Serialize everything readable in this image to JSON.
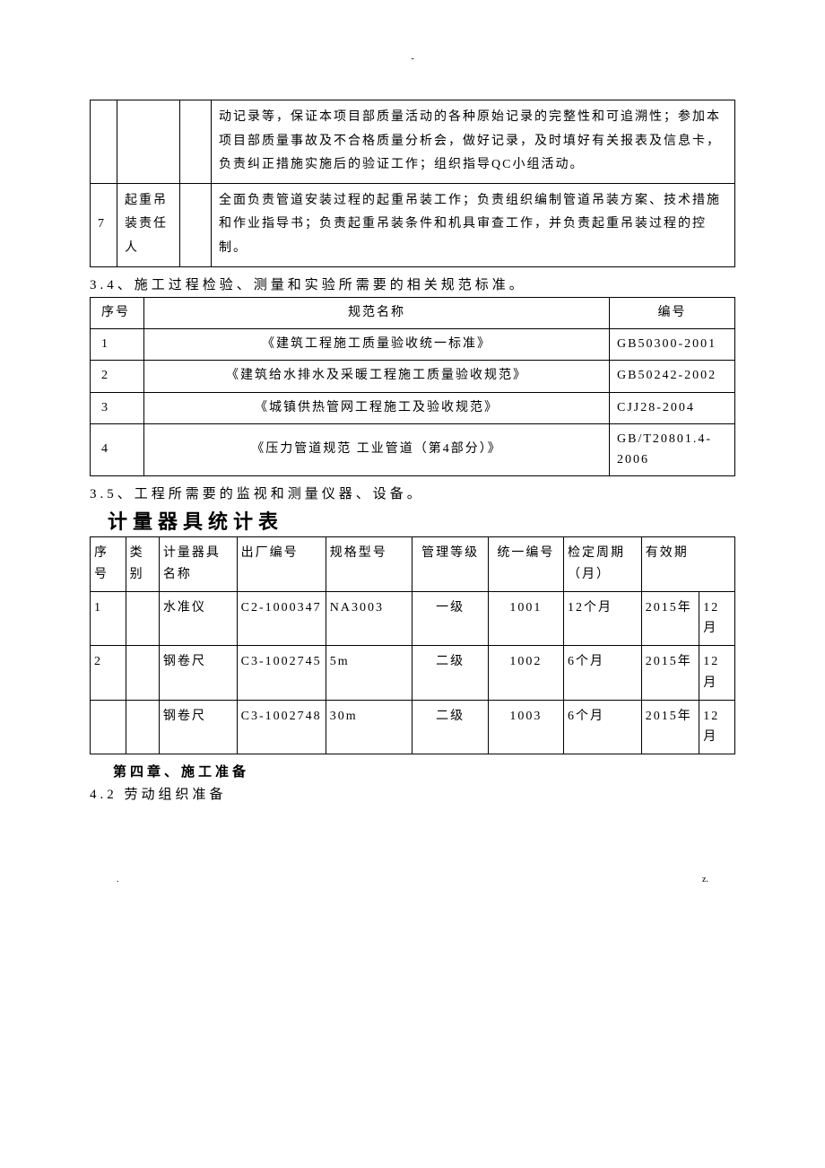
{
  "page_mark": "-",
  "table1": {
    "rows": [
      {
        "num": "",
        "role": "",
        "blank": "",
        "desc": "动记录等，保证本项目部质量活动的各种原始记录的完整性和可追溯性；参加本项目部质量事故及不合格质量分析会，做好记录，及时填好有关报表及信息卡，负责纠正措施实施后的验证工作；组织指导QC小组活动。"
      },
      {
        "num": "7",
        "role": "起重吊装责任人",
        "blank": "",
        "desc": "全面负责管道安装过程的起重吊装工作；负责组织编制管道吊装方案、技术措施和作业指导书；负责起重吊装条件和机具审查工作，并负责起重吊装过程的控制。"
      }
    ]
  },
  "section_3_4": "3.4、施工过程检验、测量和实验所需要的相关规范标准。",
  "table2": {
    "headers": {
      "seq": "序号",
      "name": "规范名称",
      "code": "编号"
    },
    "rows": [
      {
        "seq": "1",
        "name": "《建筑工程施工质量验收统一标准》",
        "code": "GB50300-2001"
      },
      {
        "seq": "2",
        "name": "《建筑给水排水及采暖工程施工质量验收规范》",
        "code": "GB50242-2002"
      },
      {
        "seq": "3",
        "name": "《城镇供热管网工程施工及验收规范》",
        "code": "CJJ28-2004"
      },
      {
        "seq": "4",
        "name": "《压力管道规范 工业管道（第4部分）》",
        "code": "GB/T20801.4-2006"
      }
    ]
  },
  "section_3_5": "3.5、工程所需要的监视和测量仪器、设备。",
  "subtitle": "计量器具统计表",
  "table3": {
    "headers": {
      "seq": "序号",
      "cat": "类别",
      "name": "计量器具名称",
      "sn": "出厂编号",
      "spec": "规格型号",
      "level": "管理等级",
      "unino": "统一编号",
      "period": "检定周期（月）",
      "valid": "有效期"
    },
    "rows": [
      {
        "seq": "1",
        "cat": "",
        "name": "水准仪",
        "sn": "C2-1000347",
        "spec": "NA3003",
        "level": "一级",
        "unino": "1001",
        "period": "12个月",
        "valid_y": "2015年",
        "valid_m": "12月"
      },
      {
        "seq": "2",
        "cat": "",
        "name": "钢卷尺",
        "sn": "C3-1002745",
        "spec": "5m",
        "level": "二级",
        "unino": "1002",
        "period": "6个月",
        "valid_y": "2015年",
        "valid_m": "12月"
      },
      {
        "seq": "",
        "cat": "",
        "name": "钢卷尺",
        "sn": "C3-1002748",
        "spec": "30m",
        "level": "二级",
        "unino": "1003",
        "period": "6个月",
        "valid_y": "2015年",
        "valid_m": "12月"
      }
    ]
  },
  "chapter4": "第四章、施工准备",
  "section_4_2": "4.2 劳动组织准备",
  "footer_left": ".",
  "footer_right": "z."
}
